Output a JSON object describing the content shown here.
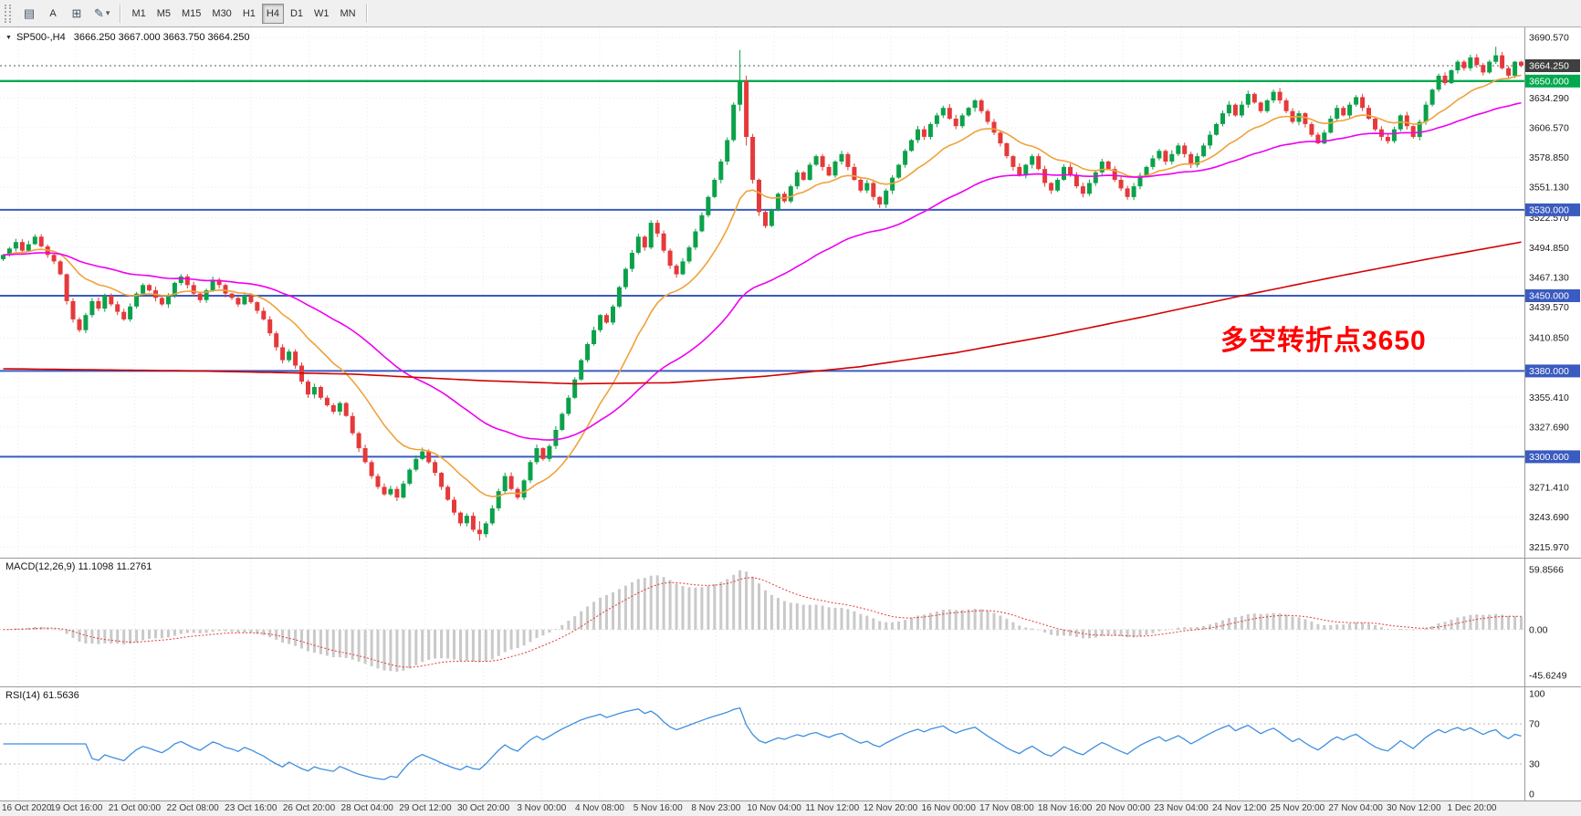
{
  "toolbar": {
    "icons": {
      "collapse": "▼",
      "chart_list": "▤",
      "cursor": "A",
      "frame": "⊞",
      "draw": "✎",
      "chevron_down": "▾"
    },
    "timeframes": [
      {
        "label": "M1",
        "active": false
      },
      {
        "label": "M5",
        "active": false
      },
      {
        "label": "M15",
        "active": false
      },
      {
        "label": "M30",
        "active": false
      },
      {
        "label": "H1",
        "active": false
      },
      {
        "label": "H4",
        "active": true
      },
      {
        "label": "D1",
        "active": false
      },
      {
        "label": "W1",
        "active": false
      },
      {
        "label": "MN",
        "active": false
      }
    ]
  },
  "chart": {
    "symbol_label": "SP500-,H4",
    "ohlc_label": "3666.250 3667.000 3663.750 3664.250",
    "annotation": {
      "text": "多空转折点3650",
      "color": "#ff0000"
    }
  },
  "chart_data": {
    "type": "candlestick",
    "symbol": "SP500-",
    "period": "H4",
    "current": {
      "open": 3666.25,
      "high": 3667.0,
      "low": 3663.75,
      "close": 3664.25
    },
    "price_range": [
      3206,
      3700
    ],
    "closes": [
      3488,
      3494,
      3500,
      3492,
      3498,
      3505,
      3496,
      3488,
      3482,
      3470,
      3445,
      3428,
      3418,
      3432,
      3445,
      3438,
      3450,
      3442,
      3435,
      3428,
      3440,
      3452,
      3460,
      3455,
      3448,
      3442,
      3450,
      3462,
      3468,
      3460,
      3452,
      3446,
      3455,
      3465,
      3460,
      3452,
      3448,
      3442,
      3450,
      3444,
      3436,
      3428,
      3415,
      3402,
      3390,
      3398,
      3385,
      3370,
      3358,
      3365,
      3355,
      3348,
      3342,
      3350,
      3338,
      3322,
      3308,
      3295,
      3282,
      3272,
      3265,
      3270,
      3262,
      3275,
      3288,
      3298,
      3305,
      3295,
      3285,
      3272,
      3260,
      3248,
      3238,
      3245,
      3232,
      3228,
      3238,
      3252,
      3268,
      3282,
      3270,
      3262,
      3278,
      3295,
      3308,
      3298,
      3310,
      3325,
      3340,
      3355,
      3372,
      3390,
      3405,
      3418,
      3432,
      3425,
      3440,
      3458,
      3475,
      3490,
      3505,
      3495,
      3518,
      3508,
      3492,
      3478,
      3470,
      3482,
      3495,
      3510,
      3525,
      3542,
      3558,
      3575,
      3595,
      3628,
      3650,
      3598,
      3558,
      3528,
      3515,
      3530,
      3545,
      3538,
      3552,
      3565,
      3558,
      3572,
      3580,
      3570,
      3562,
      3575,
      3582,
      3570,
      3558,
      3548,
      3555,
      3542,
      3535,
      3548,
      3560,
      3572,
      3585,
      3595,
      3605,
      3598,
      3610,
      3618,
      3625,
      3615,
      3608,
      3618,
      3625,
      3632,
      3622,
      3612,
      3602,
      3592,
      3580,
      3570,
      3562,
      3572,
      3580,
      3568,
      3555,
      3548,
      3558,
      3570,
      3562,
      3552,
      3545,
      3555,
      3565,
      3575,
      3568,
      3558,
      3550,
      3542,
      3552,
      3562,
      3570,
      3578,
      3585,
      3575,
      3582,
      3590,
      3582,
      3572,
      3580,
      3590,
      3600,
      3610,
      3620,
      3628,
      3618,
      3628,
      3638,
      3630,
      3622,
      3632,
      3640,
      3632,
      3622,
      3612,
      3620,
      3610,
      3600,
      3592,
      3602,
      3615,
      3625,
      3618,
      3628,
      3635,
      3625,
      3615,
      3605,
      3598,
      3594,
      3605,
      3618,
      3608,
      3598,
      3612,
      3628,
      3642,
      3655,
      3648,
      3660,
      3668,
      3662,
      3672,
      3665,
      3658,
      3668,
      3674,
      3662,
      3655,
      3668,
      3664.25
    ],
    "wick_overrides": {
      "75": [
        3240,
        3222
      ],
      "116": [
        3679,
        3622
      ],
      "117": [
        3655,
        3590
      ],
      "235": [
        3682,
        3666
      ]
    },
    "colors": {
      "up": "#0ba14a",
      "down": "#e5393a",
      "ma_fast": "#efa23b",
      "ma_mid": "#ef00ef",
      "ma_slow": "#d40000",
      "grid": "#e9e9e9",
      "macd_hist": "#c9c9c9",
      "macd_signal": "#e53935",
      "rsi_line": "#3f8fde",
      "levels": "#b9b9b9",
      "bid_line": "#5a5a5a",
      "hline_green": "#00a94f",
      "hline_blue": "#3a5bbf"
    },
    "hlines": [
      {
        "price": 3650.0,
        "color": "#00a94f",
        "width": 2.4
      },
      {
        "price": 3530.0,
        "color": "#3a5bbf",
        "width": 2
      },
      {
        "price": 3450.0,
        "color": "#3a5bbf",
        "width": 2
      },
      {
        "price": 3380.0,
        "color": "#3a5bbf",
        "width": 2
      },
      {
        "price": 3300.0,
        "color": "#3a5bbf",
        "width": 2
      }
    ],
    "ma_overlays": [
      {
        "name": "fast-ma",
        "type": "ema",
        "period": 16,
        "color": "#efa23b"
      },
      {
        "name": "mid-ma",
        "type": "ema",
        "period": 50,
        "color": "#ef00ef"
      },
      {
        "name": "slow-ma",
        "type": "anchors",
        "color": "#d40000",
        "anchors": [
          [
            0,
            3382
          ],
          [
            30,
            3380
          ],
          [
            55,
            3377
          ],
          [
            75,
            3371
          ],
          [
            90,
            3368
          ],
          [
            105,
            3369
          ],
          [
            120,
            3375
          ],
          [
            135,
            3384
          ],
          [
            150,
            3397
          ],
          [
            165,
            3413
          ],
          [
            180,
            3431
          ],
          [
            195,
            3450
          ],
          [
            210,
            3468
          ],
          [
            225,
            3485
          ],
          [
            239,
            3500
          ]
        ]
      }
    ],
    "price_axis": {
      "ticks": [
        {
          "price": 3690.57,
          "label": "3690.570"
        },
        {
          "price": 3634.29,
          "label": "3634.290"
        },
        {
          "price": 3606.57,
          "label": "3606.570"
        },
        {
          "price": 3578.85,
          "label": "3578.850"
        },
        {
          "price": 3551.13,
          "label": "3551.130"
        },
        {
          "price": 3522.57,
          "label": "3522.570"
        },
        {
          "price": 3494.85,
          "label": "3494.850"
        },
        {
          "price": 3467.13,
          "label": "3467.130"
        },
        {
          "price": 3439.57,
          "label": "3439.570"
        },
        {
          "price": 3410.85,
          "label": "3410.850"
        },
        {
          "price": 3355.41,
          "label": "3355.410"
        },
        {
          "price": 3327.69,
          "label": "3327.690"
        },
        {
          "price": 3271.41,
          "label": "3271.410"
        },
        {
          "price": 3243.69,
          "label": "3243.690"
        },
        {
          "price": 3215.97,
          "label": "3215.970"
        }
      ],
      "markers": [
        {
          "price": 3664.25,
          "label": "3664.250",
          "bg": "#3f3f3f"
        },
        {
          "price": 3650.0,
          "label": "3650.000",
          "bg": "#00a94f"
        },
        {
          "price": 3530.0,
          "label": "3530.000",
          "bg": "#3a5bbf"
        },
        {
          "price": 3450.0,
          "label": "3450.000",
          "bg": "#3a5bbf"
        },
        {
          "price": 3380.0,
          "label": "3380.000",
          "bg": "#3a5bbf"
        },
        {
          "price": 3300.0,
          "label": "3300.000",
          "bg": "#3a5bbf"
        }
      ]
    },
    "macd": {
      "label": "MACD(12,26,9) 11.1098 11.2761",
      "fast": 12,
      "slow": 26,
      "signal": 9,
      "axis": [
        {
          "value": 59.8566,
          "label": "59.8566"
        },
        {
          "value": 0,
          "label": "0.00"
        },
        {
          "value": -45.6249,
          "label": "-45.6249"
        }
      ]
    },
    "rsi": {
      "label": "RSI(14) 61.5636",
      "period": 14,
      "levels": [
        70,
        30
      ],
      "axis": [
        {
          "value": 100,
          "label": "100"
        },
        {
          "value": 70,
          "label": "70"
        },
        {
          "value": 30,
          "label": "30"
        },
        {
          "value": 0,
          "label": "0"
        }
      ]
    }
  },
  "time_axis": {
    "labels": [
      "16 Oct 2020",
      "19 Oct 16:00",
      "21 Oct 00:00",
      "22 Oct 08:00",
      "23 Oct 16:00",
      "26 Oct 20:00",
      "28 Oct 04:00",
      "29 Oct 12:00",
      "30 Oct 20:00",
      "3 Nov 00:00",
      "4 Nov 08:00",
      "5 Nov 16:00",
      "8 Nov 23:00",
      "10 Nov 04:00",
      "11 Nov 12:00",
      "12 Nov 20:00",
      "16 Nov 00:00",
      "17 Nov 08:00",
      "18 Nov 16:00",
      "20 Nov 00:00",
      "23 Nov 04:00",
      "24 Nov 12:00",
      "25 Nov 20:00",
      "27 Nov 04:00",
      "30 Nov 12:00",
      "1 Dec 20:00"
    ]
  }
}
